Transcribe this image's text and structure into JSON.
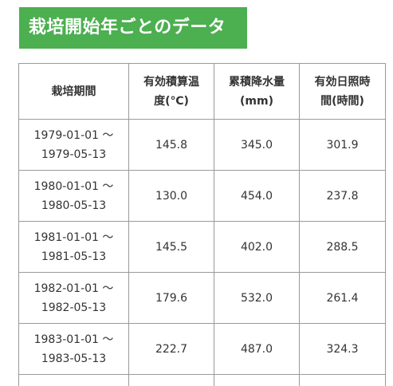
{
  "header": {
    "title": "栽培開始年ごとのデータ"
  },
  "table": {
    "columns": [
      {
        "line1": "栽培期間",
        "line2": ""
      },
      {
        "line1": "有効積算温",
        "line2": "度(℃)"
      },
      {
        "line1": "累積降水量",
        "line2": "(mm)"
      },
      {
        "line1": "有効日照時",
        "line2": "間(時間)"
      }
    ],
    "rows": [
      {
        "start": "1979-01-01 ～",
        "end": "1979-05-13",
        "temp": "145.8",
        "rain": "345.0",
        "sun": "301.9"
      },
      {
        "start": "1980-01-01 ～",
        "end": "1980-05-13",
        "temp": "130.0",
        "rain": "454.0",
        "sun": "237.8"
      },
      {
        "start": "1981-01-01 ～",
        "end": "1981-05-13",
        "temp": "145.5",
        "rain": "402.0",
        "sun": "288.5"
      },
      {
        "start": "1982-01-01 ～",
        "end": "1982-05-13",
        "temp": "179.6",
        "rain": "532.0",
        "sun": "261.4"
      },
      {
        "start": "1983-01-01 ～",
        "end": "1983-05-13",
        "temp": "222.7",
        "rain": "487.0",
        "sun": "324.3"
      }
    ]
  },
  "colors": {
    "banner_bg": "#4caf50",
    "banner_text": "#ffffff",
    "border": "#9a9a9a",
    "text": "#333333"
  }
}
